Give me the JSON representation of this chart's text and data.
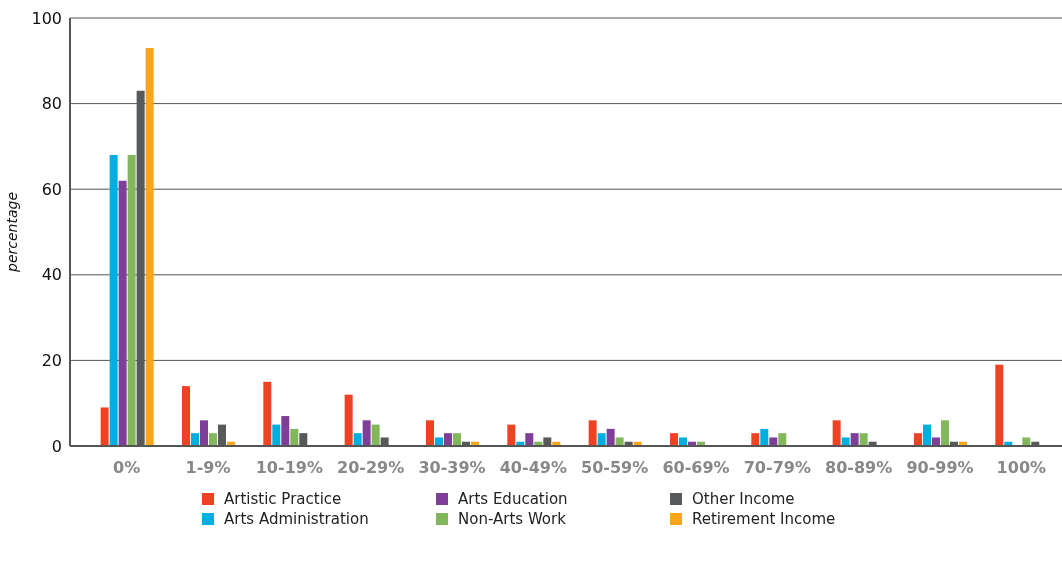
{
  "chart_data": {
    "type": "bar",
    "ylabel": "percentage",
    "categories": [
      "0%",
      "1-9%",
      "10-19%",
      "20-29%",
      "30-39%",
      "40-49%",
      "50-59%",
      "60-69%",
      "70-79%",
      "80-89%",
      "90-99%",
      "100%"
    ],
    "series": [
      {
        "name": "Artistic Practice",
        "color": "#ee4323",
        "values": [
          9,
          14,
          15,
          12,
          6,
          5,
          6,
          3,
          3,
          6,
          3,
          19
        ]
      },
      {
        "name": "Arts Administration",
        "color": "#00aee0",
        "values": [
          68,
          3,
          5,
          3,
          2,
          1,
          3,
          2,
          4,
          2,
          5,
          1
        ]
      },
      {
        "name": "Arts Education",
        "color": "#7f3f98",
        "values": [
          62,
          6,
          7,
          6,
          3,
          3,
          4,
          1,
          2,
          3,
          2,
          0
        ]
      },
      {
        "name": "Non-Arts Work",
        "color": "#82b85b",
        "values": [
          68,
          3,
          4,
          5,
          3,
          1,
          2,
          1,
          3,
          3,
          6,
          2
        ]
      },
      {
        "name": "Other Income",
        "color": "#58595b",
        "values": [
          83,
          5,
          3,
          2,
          1,
          2,
          1,
          0,
          0,
          1,
          1,
          1
        ]
      },
      {
        "name": "Retirement Income",
        "color": "#faa61a",
        "values": [
          93,
          1,
          0,
          0,
          1,
          1,
          1,
          0,
          0,
          0,
          1,
          0
        ]
      }
    ],
    "ylim": [
      0,
      100
    ],
    "yticks": [
      0,
      20,
      40,
      60,
      80,
      100
    ],
    "grid": "y",
    "legend": "bottom"
  }
}
